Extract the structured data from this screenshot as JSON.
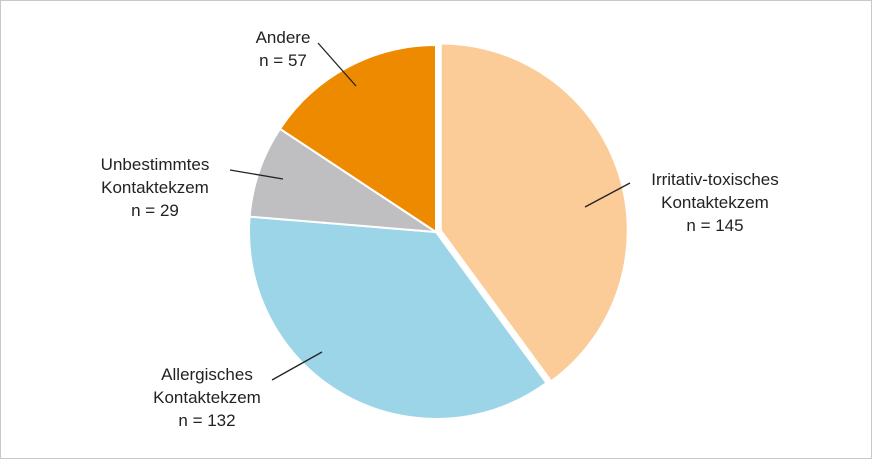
{
  "chart_data": {
    "type": "pie",
    "categories": [
      [
        "Irritativ-toxisches",
        "Kontaktekzem"
      ],
      [
        "Allergisches",
        "Kontaktekzem"
      ],
      [
        "Unbestimmtes",
        "Kontaktekzem"
      ],
      [
        "Andere"
      ]
    ],
    "values": [
      145,
      132,
      29,
      57
    ],
    "value_labels": [
      "n = 145",
      "n = 132",
      "n = 29",
      "n = 57"
    ],
    "colors": [
      "#fbcb98",
      "#9dd5e8",
      "#bfbfc1",
      "#ee8a00"
    ]
  }
}
